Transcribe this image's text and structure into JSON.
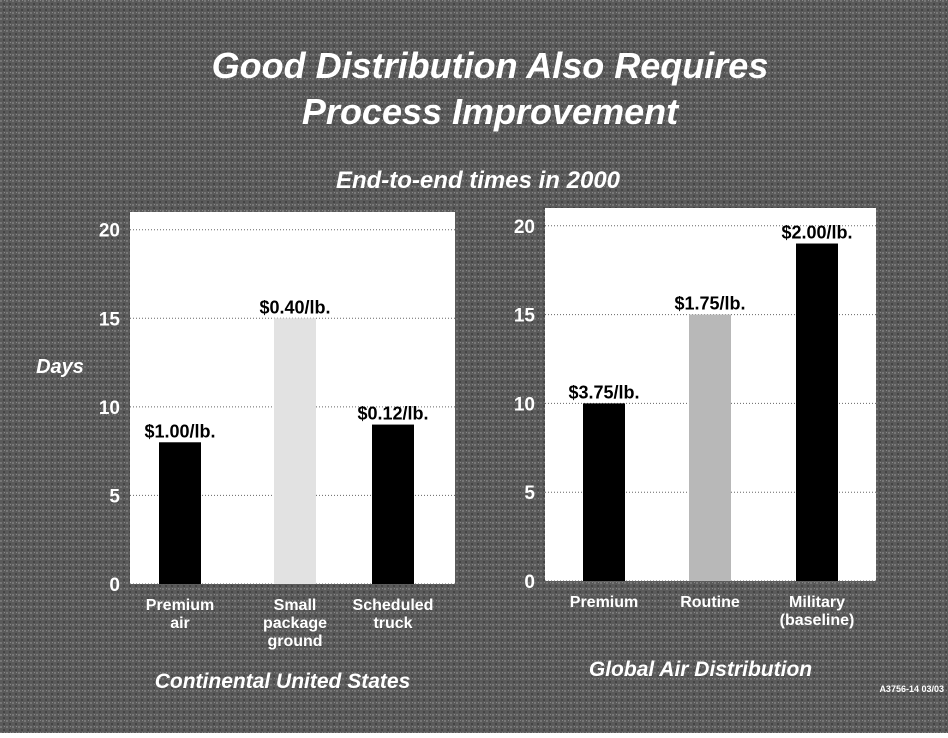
{
  "title": [
    "Good Distribution Also Requires",
    "Process Improvement"
  ],
  "subtitle": "End-to-end times in 2000",
  "footnote": "A3756-14 03/03",
  "chart_data": [
    {
      "type": "bar",
      "categories": [
        [
          "Premium",
          "air"
        ],
        [
          "Small",
          "package",
          "ground"
        ],
        [
          "Scheduled",
          "truck"
        ]
      ],
      "values": [
        8,
        15,
        9
      ],
      "annotations": [
        "$1.00/lb.",
        "$0.40/lb.",
        "$0.12/lb."
      ],
      "colors": [
        "#000000",
        "#e2e2e2",
        "#000000"
      ],
      "ylim": [
        0,
        21
      ],
      "yticks": [
        0,
        5,
        10,
        15,
        20
      ],
      "grid": true,
      "y_label": "Days",
      "x_label": "Continental United States"
    },
    {
      "type": "bar",
      "categories": [
        [
          "Premium"
        ],
        [
          "Routine"
        ],
        [
          "Military",
          "(baseline)"
        ]
      ],
      "values": [
        10,
        15,
        19
      ],
      "annotations": [
        "$3.75/lb.",
        "$1.75/lb.",
        "$2.00/lb."
      ],
      "colors": [
        "#000000",
        "#b8b8b8",
        "#000000"
      ],
      "ylim": [
        0,
        21
      ],
      "yticks": [
        0,
        5,
        10,
        15,
        20
      ],
      "grid": true,
      "x_label": "Global Air Distribution"
    }
  ]
}
